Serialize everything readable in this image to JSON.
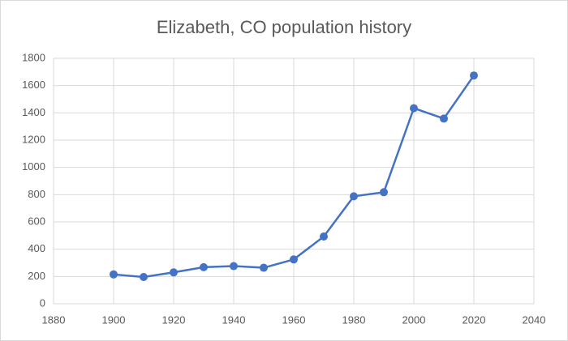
{
  "chart_data": {
    "type": "line",
    "title": "Elizabeth, CO population history",
    "x": [
      1900,
      1910,
      1920,
      1930,
      1940,
      1950,
      1960,
      1970,
      1980,
      1990,
      2000,
      2010,
      2020
    ],
    "values": [
      215,
      196,
      230,
      268,
      276,
      264,
      325,
      493,
      788,
      818,
      1434,
      1358,
      1674
    ],
    "color": "#4472c4",
    "xlim": [
      1880,
      2040
    ],
    "xticks": [
      1880,
      1900,
      1920,
      1940,
      1960,
      1980,
      2000,
      2020,
      2040
    ],
    "ylim": [
      0,
      1800
    ],
    "yticks": [
      0,
      200,
      400,
      600,
      800,
      1000,
      1200,
      1400,
      1600,
      1800
    ],
    "grid": true
  }
}
